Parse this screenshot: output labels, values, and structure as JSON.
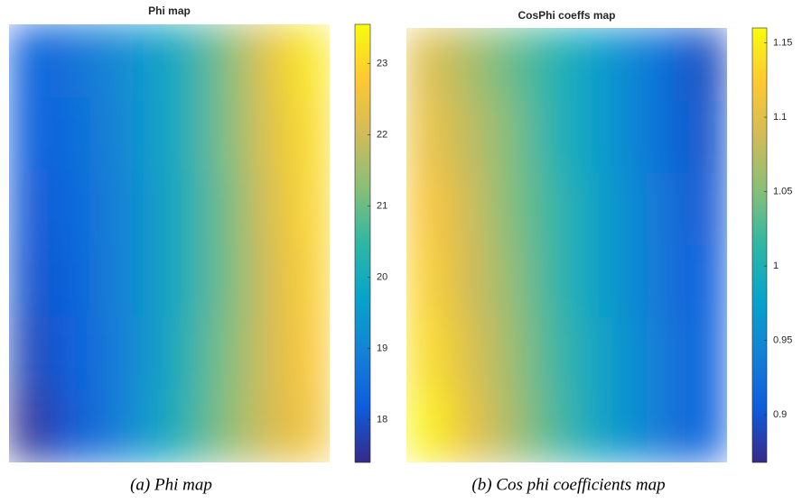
{
  "chart_data": [
    {
      "type": "heatmap",
      "title": "Phi map",
      "caption": "(a)  Phi map",
      "values": [
        [
          18.3,
          18.6,
          19.0,
          19.5,
          20.2,
          21.2,
          22.4,
          23.3
        ],
        [
          18.2,
          18.5,
          18.9,
          19.5,
          20.2,
          21.2,
          22.3,
          23.1
        ],
        [
          18.1,
          18.4,
          18.8,
          19.4,
          20.2,
          21.1,
          22.2,
          23.0
        ],
        [
          18.0,
          18.3,
          18.8,
          19.4,
          20.2,
          21.1,
          22.1,
          22.9
        ],
        [
          17.8,
          18.2,
          18.7,
          19.4,
          20.3,
          21.2,
          22.1,
          22.8
        ],
        [
          17.5,
          18.1,
          18.7,
          19.5,
          20.4,
          21.3,
          22.1,
          22.6
        ]
      ],
      "clim": [
        17.4,
        23.55
      ],
      "cticks": [
        18,
        19,
        20,
        21,
        22,
        23
      ],
      "colormap": [
        "#352a87",
        "#0f5cdd",
        "#1481d6",
        "#06a4ca",
        "#2eb7a4",
        "#87bf77",
        "#d1bb59",
        "#fec832",
        "#f9fb0e"
      ]
    },
    {
      "type": "heatmap",
      "title": "CosPhi coeffs map",
      "caption": "(b)  Cos phi coefficients map",
      "values": [
        [
          1.1,
          1.07,
          1.04,
          1.01,
          0.98,
          0.95,
          0.92,
          0.89
        ],
        [
          1.11,
          1.08,
          1.05,
          1.01,
          0.98,
          0.95,
          0.92,
          0.895
        ],
        [
          1.12,
          1.09,
          1.05,
          1.02,
          0.985,
          0.955,
          0.925,
          0.9
        ],
        [
          1.13,
          1.09,
          1.06,
          1.02,
          0.985,
          0.955,
          0.925,
          0.905
        ],
        [
          1.14,
          1.1,
          1.065,
          1.025,
          0.99,
          0.96,
          0.93,
          0.91
        ],
        [
          1.155,
          1.11,
          1.07,
          1.03,
          0.99,
          0.96,
          0.93,
          0.91
        ]
      ],
      "clim": [
        0.868,
        1.16
      ],
      "cticks": [
        0.9,
        0.95,
        1,
        1.05,
        1.1,
        1.15
      ],
      "colormap": [
        "#352a87",
        "#0f5cdd",
        "#1481d6",
        "#06a4ca",
        "#2eb7a4",
        "#87bf77",
        "#d1bb59",
        "#fec832",
        "#f9fb0e"
      ]
    }
  ]
}
